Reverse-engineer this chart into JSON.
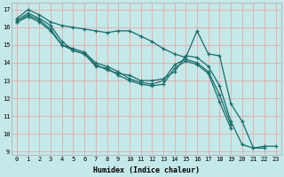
{
  "xlabel": "Humidex (Indice chaleur)",
  "bg_color": "#c5e8e8",
  "grid_color": "#e8a0a0",
  "line_color": "#1a6b6b",
  "xlim": [
    -0.5,
    23.5
  ],
  "ylim": [
    8.8,
    17.4
  ],
  "yticks": [
    9,
    10,
    11,
    12,
    13,
    14,
    15,
    16,
    17
  ],
  "xticks": [
    0,
    1,
    2,
    3,
    4,
    5,
    6,
    7,
    8,
    9,
    10,
    11,
    12,
    13,
    14,
    15,
    16,
    17,
    18,
    19,
    20,
    21,
    22,
    23
  ],
  "series": [
    [
      16.5,
      17.0,
      16.7,
      16.3,
      16.1,
      16.0,
      15.9,
      15.8,
      15.7,
      15.8,
      15.8,
      15.5,
      15.2,
      14.8,
      14.5,
      14.3,
      15.8,
      14.5,
      14.4,
      11.7,
      10.7,
      9.2,
      9.3,
      9.3
    ],
    [
      16.4,
      16.8,
      16.5,
      16.1,
      15.2,
      14.7,
      14.5,
      13.9,
      13.6,
      13.4,
      13.3,
      13.0,
      13.0,
      13.1,
      13.5,
      14.4,
      14.3,
      13.8,
      12.7,
      10.7,
      9.4,
      9.2,
      9.2,
      null
    ],
    [
      16.3,
      16.7,
      16.4,
      15.9,
      15.0,
      14.8,
      14.6,
      14.0,
      13.8,
      13.5,
      13.1,
      12.9,
      12.8,
      13.0,
      13.9,
      14.2,
      14.0,
      13.5,
      12.2,
      10.5,
      null,
      null,
      null,
      null
    ],
    [
      16.3,
      16.6,
      16.3,
      15.8,
      15.0,
      14.7,
      14.5,
      13.8,
      13.7,
      13.3,
      13.0,
      12.8,
      12.7,
      12.8,
      13.7,
      14.1,
      13.9,
      13.4,
      11.8,
      10.3,
      null,
      null,
      null,
      null
    ]
  ]
}
